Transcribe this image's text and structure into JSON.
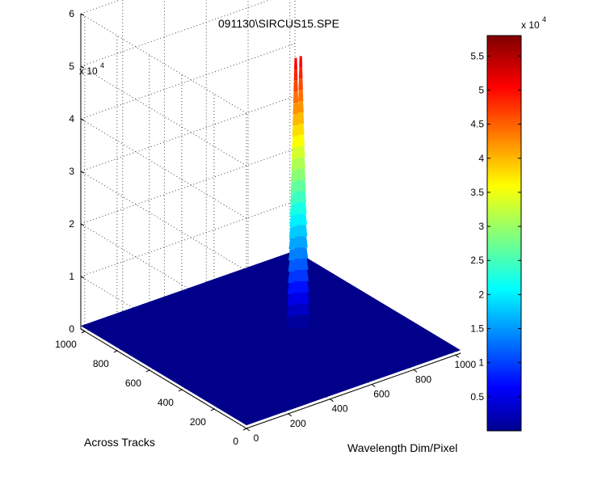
{
  "chart_data": {
    "type": "surface",
    "title": "091130\\SIRCUS15.SPE",
    "xlabel": "Wavelength Dim/Pixel",
    "ylabel": "Across Tracks",
    "zlabel": "",
    "x_ticks": [
      "0",
      "200",
      "400",
      "600",
      "800",
      "1000"
    ],
    "y_ticks": [
      "0",
      "200",
      "400",
      "600",
      "800",
      "1000"
    ],
    "z_ticks": [
      "0",
      "1",
      "2",
      "3",
      "4",
      "5",
      "6"
    ],
    "z_multiplier": "x 10",
    "z_multiplier_exp": "4",
    "xlim": [
      0,
      1024
    ],
    "ylim": [
      0,
      1024
    ],
    "zlim": [
      0,
      60000
    ],
    "colormap": "jet",
    "colorbar": {
      "range": [
        0,
        58000
      ],
      "ticks": [
        "0.5",
        "1",
        "1.5",
        "2",
        "2.5",
        "3",
        "3.5",
        "4",
        "4.5",
        "5",
        "5.5"
      ],
      "multiplier": "x 10",
      "multiplier_exp": "4"
    },
    "baseline": 600,
    "peak": {
      "x": 650,
      "y": 520,
      "max": 52000,
      "note": "twin narrow spikes"
    },
    "grid": true
  }
}
